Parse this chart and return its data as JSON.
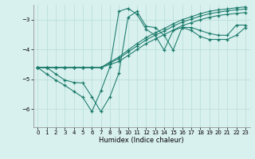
{
  "xlabel": "Humidex (Indice chaleur)",
  "bg_color": "#d8f0ee",
  "grid_color": "#b8dcd8",
  "line_color": "#1a7a6a",
  "xlim": [
    -0.5,
    23.5
  ],
  "ylim": [
    -6.6,
    -2.5
  ],
  "yticks": [
    -6,
    -5,
    -4,
    -3
  ],
  "xticks": [
    0,
    1,
    2,
    3,
    4,
    5,
    6,
    7,
    8,
    9,
    10,
    11,
    12,
    13,
    14,
    15,
    16,
    17,
    18,
    19,
    20,
    21,
    22,
    23
  ],
  "line1_x": [
    0,
    1,
    2,
    3,
    4,
    5,
    6,
    7,
    8,
    9,
    10,
    11,
    12,
    13,
    14,
    15,
    16,
    17,
    18,
    19,
    20,
    21,
    22,
    23
  ],
  "line1_y": [
    -4.6,
    -4.6,
    -4.6,
    -4.6,
    -4.6,
    -4.6,
    -4.6,
    -4.6,
    -4.5,
    -4.4,
    -4.2,
    -4.0,
    -3.8,
    -3.65,
    -3.5,
    -3.35,
    -3.2,
    -3.1,
    -3.0,
    -2.92,
    -2.86,
    -2.82,
    -2.79,
    -2.76
  ],
  "line2_x": [
    0,
    1,
    2,
    3,
    4,
    5,
    6,
    7,
    8,
    9,
    10,
    11,
    12,
    13,
    14,
    15,
    16,
    17,
    18,
    19,
    20,
    21,
    22,
    23
  ],
  "line2_y": [
    -4.6,
    -4.6,
    -4.6,
    -4.6,
    -4.6,
    -4.6,
    -4.6,
    -4.6,
    -4.45,
    -4.3,
    -4.08,
    -3.88,
    -3.68,
    -3.52,
    -3.38,
    -3.22,
    -3.08,
    -2.98,
    -2.88,
    -2.8,
    -2.75,
    -2.7,
    -2.67,
    -2.64
  ],
  "line3_x": [
    0,
    1,
    2,
    3,
    4,
    5,
    6,
    7,
    8,
    9,
    10,
    11,
    12,
    13,
    14,
    15,
    16,
    17,
    18,
    19,
    20,
    21,
    22,
    23
  ],
  "line3_y": [
    -4.6,
    -4.6,
    -4.6,
    -4.6,
    -4.6,
    -4.6,
    -4.6,
    -4.6,
    -4.42,
    -4.25,
    -4.02,
    -3.8,
    -3.6,
    -3.44,
    -3.3,
    -3.14,
    -3.0,
    -2.9,
    -2.8,
    -2.72,
    -2.67,
    -2.64,
    -2.6,
    -2.57
  ],
  "line4_x": [
    0,
    1,
    2,
    3,
    4,
    5,
    6,
    7,
    8,
    9,
    10,
    11,
    12,
    13,
    14,
    15,
    16,
    17,
    18,
    19,
    20,
    21,
    22,
    23
  ],
  "line4_y": [
    -4.6,
    -4.82,
    -5.02,
    -5.2,
    -5.4,
    -5.6,
    -6.08,
    -5.38,
    -4.58,
    -2.72,
    -2.62,
    -2.82,
    -3.32,
    -3.52,
    -4.02,
    -3.36,
    -3.26,
    -3.26,
    -3.36,
    -3.46,
    -3.52,
    -3.52,
    -3.18,
    -3.18
  ],
  "line5_x": [
    0,
    1,
    2,
    3,
    4,
    5,
    6,
    7,
    8,
    9,
    10,
    11,
    12,
    13,
    14,
    15,
    16,
    17,
    18,
    19,
    20,
    21,
    22,
    23
  ],
  "line5_y": [
    -4.6,
    -4.6,
    -4.82,
    -5.02,
    -5.1,
    -5.12,
    -5.58,
    -6.08,
    -5.58,
    -4.78,
    -2.92,
    -2.72,
    -3.22,
    -3.26,
    -3.52,
    -4.02,
    -3.26,
    -3.36,
    -3.56,
    -3.66,
    -3.66,
    -3.66,
    -3.52,
    -3.26
  ]
}
